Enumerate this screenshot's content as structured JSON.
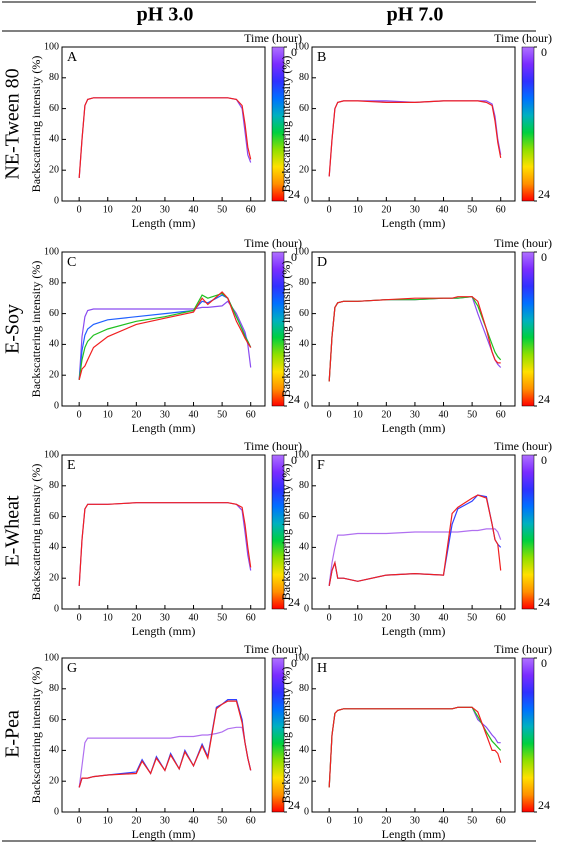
{
  "columns": [
    "pH 3.0",
    "pH 7.0"
  ],
  "rows": [
    "NE-Tween 80",
    "E-Soy",
    "E-Wheat",
    "E-Pea"
  ],
  "chart_data": [
    {
      "type": "line",
      "label": "A",
      "xlabel": "Length (mm)",
      "ylabel": "Backscattering intensity (%)",
      "xlim": [
        -6,
        65
      ],
      "ylim": [
        0,
        100
      ],
      "xticks": [
        0,
        10,
        20,
        30,
        40,
        50,
        60
      ],
      "yticks": [
        0,
        20,
        40,
        60,
        80,
        100
      ],
      "colorbar": {
        "title": "Time (hour)",
        "ticks": [
          0,
          24
        ],
        "colors": [
          "#b070ff",
          "#7a2cff",
          "#3030ff",
          "#0070ff",
          "#00b0c0",
          "#00d040",
          "#90e000",
          "#ffe000",
          "#ff9000",
          "#ff0000"
        ]
      },
      "x": [
        0,
        1,
        2,
        3,
        5,
        10,
        20,
        30,
        40,
        43,
        45,
        50,
        52,
        55,
        57,
        58,
        59,
        60
      ],
      "series": [
        {
          "color": "#8a4cf0",
          "values": [
            15,
            40,
            62,
            66,
            67,
            67,
            67,
            67,
            67,
            67,
            67,
            67,
            67,
            66,
            60,
            45,
            30,
            25
          ]
        },
        {
          "color": "#f02020",
          "values": [
            15,
            40,
            62,
            66,
            67,
            67,
            67,
            67,
            67,
            67,
            67,
            67,
            67,
            66,
            62,
            50,
            35,
            27
          ]
        }
      ]
    },
    {
      "type": "line",
      "label": "B",
      "xlabel": "Length (mm)",
      "ylabel": "Backscattering intensity (%)",
      "xlim": [
        -6,
        65
      ],
      "ylim": [
        0,
        100
      ],
      "xticks": [
        0,
        10,
        20,
        30,
        40,
        50,
        60
      ],
      "yticks": [
        0,
        20,
        40,
        60,
        80,
        100
      ],
      "colorbar": {
        "title": "Time (hour)",
        "ticks": [
          0,
          24
        ],
        "colors": [
          "#b070ff",
          "#7a2cff",
          "#3030ff",
          "#0070ff",
          "#00b0c0",
          "#00d040",
          "#90e000",
          "#ffe000",
          "#ff9000",
          "#ff0000"
        ]
      },
      "x": [
        0,
        1,
        2,
        3,
        5,
        10,
        20,
        30,
        40,
        43,
        45,
        50,
        52,
        55,
        57,
        58,
        59,
        60
      ],
      "series": [
        {
          "color": "#8a4cf0",
          "values": [
            16,
            40,
            60,
            64,
            65,
            65,
            65,
            64,
            65,
            65,
            65,
            65,
            65,
            65,
            63,
            55,
            40,
            30
          ]
        },
        {
          "color": "#f02020",
          "values": [
            16,
            40,
            60,
            64,
            65,
            65,
            64,
            64,
            65,
            65,
            65,
            65,
            65,
            64,
            62,
            52,
            38,
            28
          ]
        }
      ]
    },
    {
      "type": "line",
      "label": "C",
      "xlabel": "Length (mm)",
      "ylabel": "Backscattering intensity (%)",
      "xlim": [
        -6,
        65
      ],
      "ylim": [
        0,
        100
      ],
      "xticks": [
        0,
        10,
        20,
        30,
        40,
        50,
        60
      ],
      "yticks": [
        0,
        20,
        40,
        60,
        80,
        100
      ],
      "colorbar": {
        "title": "Time (hour)",
        "ticks": [
          0,
          24
        ],
        "colors": [
          "#b070ff",
          "#7a2cff",
          "#3030ff",
          "#0070ff",
          "#00b0c0",
          "#00d040",
          "#90e000",
          "#ffe000",
          "#ff9000",
          "#ff0000"
        ]
      },
      "x": [
        0,
        1,
        2,
        3,
        5,
        10,
        20,
        30,
        40,
        43,
        45,
        50,
        52,
        55,
        57,
        58,
        59,
        60
      ],
      "series": [
        {
          "color": "#8a4cf0",
          "values": [
            17,
            45,
            58,
            62,
            63,
            63,
            63,
            63,
            63,
            64,
            64,
            65,
            68,
            60,
            52,
            48,
            40,
            25
          ]
        },
        {
          "color": "#2060ff",
          "values": [
            17,
            36,
            46,
            50,
            53,
            56,
            58,
            60,
            62,
            68,
            67,
            72,
            70,
            58,
            50,
            46,
            42,
            38
          ]
        },
        {
          "color": "#20c020",
          "values": [
            17,
            30,
            38,
            42,
            46,
            50,
            55,
            58,
            62,
            72,
            70,
            73,
            70,
            58,
            50,
            45,
            42,
            38
          ]
        },
        {
          "color": "#f02020",
          "values": [
            17,
            24,
            26,
            30,
            38,
            45,
            53,
            57,
            61,
            70,
            66,
            74,
            70,
            55,
            48,
            44,
            41,
            38
          ]
        }
      ]
    },
    {
      "type": "line",
      "label": "D",
      "xlabel": "Length (mm)",
      "ylabel": "Backscattering intensity (%)",
      "xlim": [
        -6,
        65
      ],
      "ylim": [
        0,
        100
      ],
      "xticks": [
        0,
        10,
        20,
        30,
        40,
        50,
        60
      ],
      "yticks": [
        0,
        20,
        40,
        60,
        80,
        100
      ],
      "colorbar": {
        "title": "Time (hour)",
        "ticks": [
          0,
          24
        ],
        "colors": [
          "#b070ff",
          "#7a2cff",
          "#3030ff",
          "#0070ff",
          "#00b0c0",
          "#00d040",
          "#90e000",
          "#ffe000",
          "#ff9000",
          "#ff0000"
        ]
      },
      "x": [
        0,
        1,
        2,
        3,
        5,
        10,
        20,
        30,
        40,
        43,
        45,
        50,
        52,
        55,
        57,
        58,
        59,
        60
      ],
      "series": [
        {
          "color": "#8a4cf0",
          "values": [
            16,
            45,
            64,
            67,
            68,
            68,
            69,
            69,
            70,
            70,
            70,
            71,
            60,
            45,
            35,
            30,
            27,
            25
          ]
        },
        {
          "color": "#20c020",
          "values": [
            16,
            45,
            64,
            67,
            68,
            68,
            69,
            69,
            70,
            70,
            70,
            71,
            65,
            50,
            40,
            35,
            32,
            30
          ]
        },
        {
          "color": "#f02020",
          "values": [
            16,
            45,
            64,
            67,
            68,
            68,
            69,
            70,
            70,
            70,
            71,
            71,
            68,
            50,
            35,
            30,
            28,
            28
          ]
        }
      ]
    },
    {
      "type": "line",
      "label": "E",
      "xlabel": "Length (mm)",
      "ylabel": "Backscattering intensity (%)",
      "xlim": [
        -6,
        65
      ],
      "ylim": [
        0,
        100
      ],
      "xticks": [
        0,
        10,
        20,
        30,
        40,
        50,
        60
      ],
      "yticks": [
        0,
        20,
        40,
        60,
        80,
        100
      ],
      "colorbar": {
        "title": "Time (hour)",
        "ticks": [
          0,
          24
        ],
        "colors": [
          "#b070ff",
          "#7a2cff",
          "#3030ff",
          "#0070ff",
          "#00b0c0",
          "#00d040",
          "#90e000",
          "#ffe000",
          "#ff9000",
          "#ff0000"
        ]
      },
      "x": [
        0,
        1,
        2,
        3,
        5,
        10,
        20,
        30,
        40,
        43,
        45,
        50,
        52,
        55,
        57,
        58,
        59,
        60
      ],
      "series": [
        {
          "color": "#8a4cf0",
          "values": [
            15,
            45,
            65,
            68,
            68,
            68,
            69,
            69,
            69,
            69,
            69,
            69,
            69,
            68,
            64,
            50,
            35,
            25
          ]
        },
        {
          "color": "#f02020",
          "values": [
            15,
            45,
            65,
            68,
            68,
            68,
            69,
            69,
            69,
            69,
            69,
            69,
            69,
            68,
            66,
            55,
            40,
            27
          ]
        }
      ]
    },
    {
      "type": "line",
      "label": "F",
      "xlabel": "Length (mm)",
      "ylabel": "Backscattering intensity (%)",
      "xlim": [
        -6,
        65
      ],
      "ylim": [
        0,
        100
      ],
      "xticks": [
        0,
        10,
        20,
        30,
        40,
        50,
        60
      ],
      "yticks": [
        0,
        20,
        40,
        60,
        80,
        100
      ],
      "colorbar": {
        "title": "Time (hour)",
        "ticks": [
          0,
          24
        ],
        "colors": [
          "#b070ff",
          "#7a2cff",
          "#3030ff",
          "#0070ff",
          "#00b0c0",
          "#00d040",
          "#90e000",
          "#ffe000",
          "#ff9000",
          "#ff0000"
        ]
      },
      "x": [
        0,
        1,
        2,
        3,
        5,
        10,
        20,
        30,
        40,
        43,
        45,
        50,
        52,
        55,
        57,
        58,
        59,
        60
      ],
      "series": [
        {
          "color": "#b070f0",
          "values": [
            16,
            30,
            40,
            48,
            48,
            49,
            49,
            50,
            50,
            50,
            50,
            51,
            51,
            52,
            52,
            52,
            50,
            45
          ]
        },
        {
          "color": "#3040ff",
          "values": [
            15,
            25,
            30,
            20,
            20,
            18,
            22,
            23,
            22,
            55,
            65,
            70,
            74,
            73,
            55,
            45,
            42,
            40
          ]
        },
        {
          "color": "#f02020",
          "values": [
            15,
            25,
            30,
            20,
            20,
            18,
            22,
            23,
            22,
            62,
            66,
            72,
            74,
            72,
            55,
            45,
            42,
            25
          ]
        }
      ]
    },
    {
      "type": "line",
      "label": "G",
      "xlabel": "Length (mm)",
      "ylabel": "Backscattering intensity (%)",
      "xlim": [
        -6,
        65
      ],
      "ylim": [
        0,
        100
      ],
      "xticks": [
        0,
        10,
        20,
        30,
        40,
        50,
        60
      ],
      "yticks": [
        0,
        20,
        40,
        60,
        80,
        100
      ],
      "colorbar": {
        "title": "Time (hour)",
        "ticks": [
          0,
          24
        ],
        "colors": [
          "#b070ff",
          "#7a2cff",
          "#3030ff",
          "#0070ff",
          "#00b0c0",
          "#00d040",
          "#90e000",
          "#ffe000",
          "#ff9000",
          "#ff0000"
        ]
      },
      "x": [
        0,
        1,
        2,
        3,
        5,
        10,
        20,
        22,
        25,
        27,
        30,
        32,
        35,
        37,
        40,
        43,
        45,
        48,
        50,
        52,
        55,
        57,
        58,
        59,
        60
      ],
      "series": [
        {
          "color": "#b070f0",
          "values": [
            16,
            30,
            45,
            48,
            48,
            48,
            48,
            48,
            48,
            48,
            48,
            48,
            49,
            49,
            49,
            50,
            50,
            51,
            52,
            54,
            55,
            55,
            45,
            35,
            27
          ]
        },
        {
          "color": "#3040ff",
          "values": [
            16,
            22,
            22,
            22,
            23,
            24,
            26,
            34,
            25,
            36,
            27,
            38,
            28,
            40,
            30,
            44,
            36,
            68,
            70,
            73,
            73,
            60,
            45,
            35,
            27
          ]
        },
        {
          "color": "#f02020",
          "values": [
            16,
            22,
            22,
            22,
            23,
            24,
            25,
            33,
            25,
            35,
            27,
            37,
            28,
            39,
            30,
            43,
            35,
            67,
            70,
            72,
            72,
            58,
            45,
            35,
            27
          ]
        }
      ]
    },
    {
      "type": "line",
      "label": "H",
      "xlabel": "Length (mm)",
      "ylabel": "Backscattering intensity (%)",
      "xlim": [
        -6,
        65
      ],
      "ylim": [
        0,
        100
      ],
      "xticks": [
        0,
        10,
        20,
        30,
        40,
        50,
        60
      ],
      "yticks": [
        0,
        20,
        40,
        60,
        80,
        100
      ],
      "colorbar": {
        "title": "Time (hour)",
        "ticks": [
          0,
          24
        ],
        "colors": [
          "#b070ff",
          "#7a2cff",
          "#3030ff",
          "#0070ff",
          "#00b0c0",
          "#00d040",
          "#90e000",
          "#ffe000",
          "#ff9000",
          "#ff0000"
        ]
      },
      "x": [
        0,
        1,
        2,
        3,
        5,
        10,
        20,
        30,
        40,
        43,
        45,
        50,
        52,
        55,
        57,
        58,
        59,
        60
      ],
      "series": [
        {
          "color": "#8a4cf0",
          "values": [
            16,
            50,
            64,
            66,
            67,
            67,
            67,
            67,
            67,
            67,
            68,
            68,
            60,
            55,
            50,
            48,
            45,
            45
          ]
        },
        {
          "color": "#20c020",
          "values": [
            16,
            50,
            64,
            66,
            67,
            67,
            67,
            67,
            67,
            67,
            68,
            68,
            62,
            52,
            46,
            44,
            42,
            40
          ]
        },
        {
          "color": "#f02020",
          "values": [
            16,
            50,
            64,
            66,
            67,
            67,
            67,
            67,
            67,
            67,
            68,
            68,
            65,
            50,
            40,
            40,
            38,
            32
          ]
        }
      ]
    }
  ]
}
